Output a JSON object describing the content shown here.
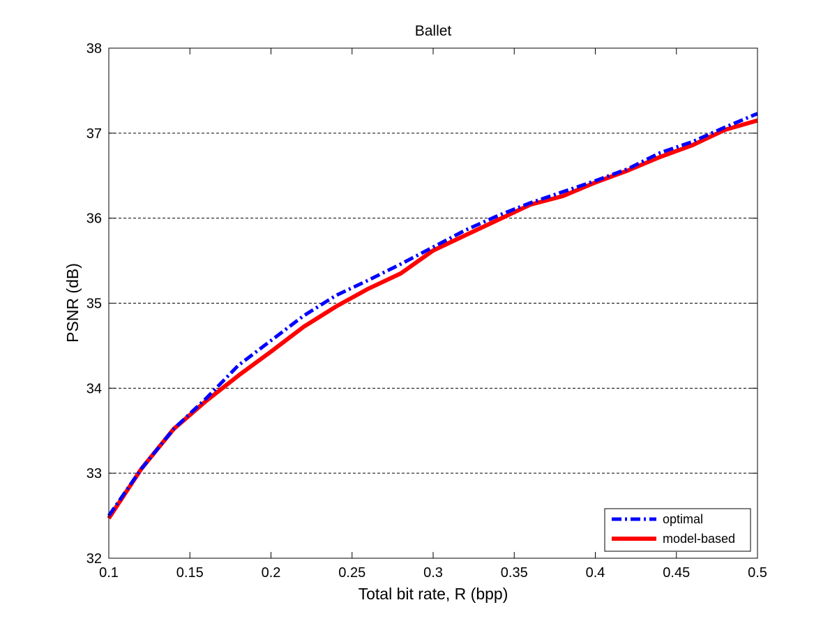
{
  "chart_data": {
    "type": "line",
    "title": "Ballet",
    "xlabel": "Total bit rate, R (bpp)",
    "ylabel": "PSNR (dB)",
    "xlim": [
      0.1,
      0.5
    ],
    "ylim": [
      32,
      38
    ],
    "xticks": [
      0.1,
      0.15,
      0.2,
      0.25,
      0.3,
      0.35,
      0.4,
      0.45,
      0.5
    ],
    "xtick_labels": [
      "0.1",
      "0.15",
      "0.2",
      "0.25",
      "0.3",
      "0.35",
      "0.4",
      "0.45",
      "0.5"
    ],
    "yticks": [
      32,
      33,
      34,
      35,
      36,
      37,
      38
    ],
    "ytick_labels": [
      "32",
      "33",
      "34",
      "35",
      "36",
      "37",
      "38"
    ],
    "grid": "horizontal dashed",
    "legend_position": "bottom-right",
    "series": [
      {
        "name": "optimal",
        "color": "#0000ff",
        "style": "dash-dot",
        "x": [
          0.1,
          0.12,
          0.14,
          0.16,
          0.18,
          0.2,
          0.22,
          0.24,
          0.26,
          0.28,
          0.3,
          0.32,
          0.34,
          0.36,
          0.38,
          0.4,
          0.42,
          0.44,
          0.46,
          0.48,
          0.5
        ],
        "y": [
          32.5,
          33.05,
          33.52,
          33.88,
          34.27,
          34.56,
          34.85,
          35.09,
          35.27,
          35.46,
          35.66,
          35.86,
          36.03,
          36.18,
          36.31,
          36.44,
          36.58,
          36.77,
          36.9,
          37.07,
          37.23
        ]
      },
      {
        "name": "model-based",
        "color": "#ff0000",
        "style": "solid",
        "x": [
          0.1,
          0.12,
          0.14,
          0.16,
          0.18,
          0.2,
          0.22,
          0.24,
          0.26,
          0.28,
          0.3,
          0.32,
          0.34,
          0.36,
          0.38,
          0.4,
          0.42,
          0.44,
          0.46,
          0.48,
          0.5
        ],
        "y": [
          32.47,
          33.05,
          33.52,
          33.85,
          34.15,
          34.43,
          34.72,
          34.96,
          35.17,
          35.35,
          35.62,
          35.8,
          35.98,
          36.16,
          36.26,
          36.42,
          36.56,
          36.72,
          36.86,
          37.04,
          37.15
        ]
      }
    ]
  }
}
